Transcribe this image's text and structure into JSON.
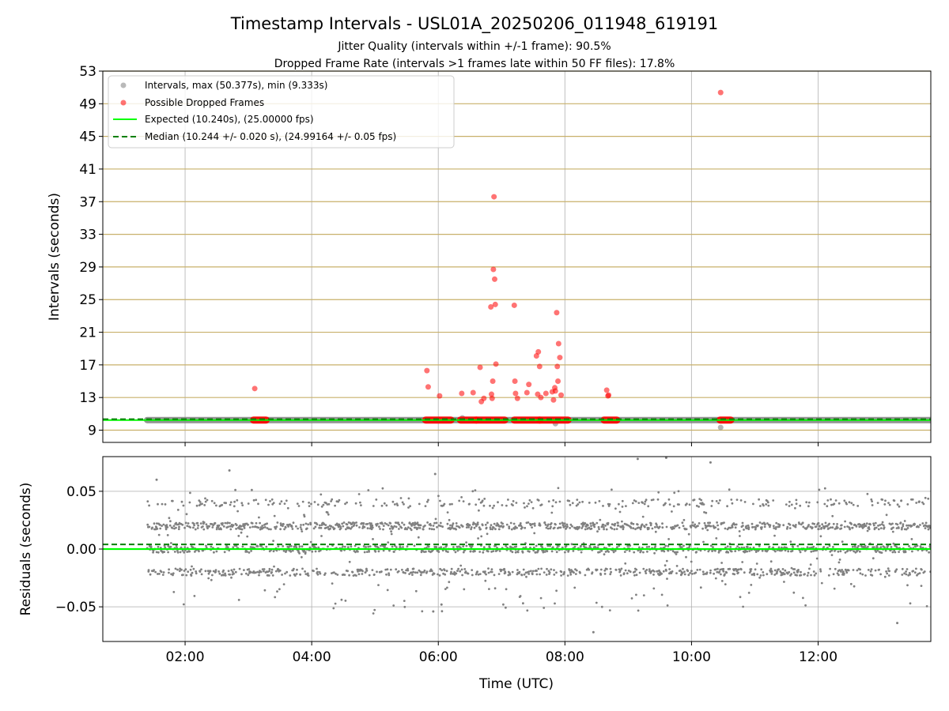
{
  "chart_data": [
    {
      "type": "scatter",
      "title": "Timestamp Intervals - USL01A_20250206_011948_619191",
      "subtitle_lines": [
        "Jitter Quality (intervals within +/-1 frame): 90.5%",
        "Dropped Frame Rate (intervals >1 frames late within 50 FF files): 17.8%"
      ],
      "xlabel": "",
      "ylabel": "Intervals (seconds)",
      "x_unit": "hours UTC",
      "xlim": [
        0.7,
        13.78
      ],
      "ylim": [
        7.5,
        53
      ],
      "yticks": [
        9,
        13,
        17,
        21,
        25,
        29,
        33,
        37,
        41,
        45,
        49,
        53
      ],
      "ytick_labels": [
        "9",
        "13",
        "17",
        "21",
        "25",
        "29",
        "33",
        "37",
        "41",
        "45",
        "49",
        "53"
      ],
      "horizontal_grid_color": "#c8b06a",
      "vertical_grid": true,
      "legend_position": "top-left",
      "legend": [
        "Intervals, max (50.377s), min (9.333s)",
        "Possible Dropped Frames",
        "Expected (10.240s), (25.00000 fps)",
        "Median (10.244 +/- 0.020 s), (24.99164 +/- 0.05 fps)"
      ],
      "intervals": {
        "color": "#808080",
        "x_range": [
          1.4,
          13.78
        ],
        "baseline_value": 10.24,
        "outliers": [
          {
            "x": 6.38,
            "y": 10.5
          },
          {
            "x": 7.85,
            "y": 9.8
          },
          {
            "x": 10.46,
            "y": 9.333
          }
        ]
      },
      "dropped_frames": {
        "color": "#ff0000",
        "points": [
          {
            "x": 3.1,
            "y": 14.1
          },
          {
            "x": 5.82,
            "y": 16.3
          },
          {
            "x": 5.84,
            "y": 14.3
          },
          {
            "x": 6.02,
            "y": 13.2
          },
          {
            "x": 6.37,
            "y": 13.5
          },
          {
            "x": 6.55,
            "y": 13.6
          },
          {
            "x": 6.66,
            "y": 16.7
          },
          {
            "x": 6.68,
            "y": 12.5
          },
          {
            "x": 6.72,
            "y": 12.9
          },
          {
            "x": 6.83,
            "y": 24.1
          },
          {
            "x": 6.84,
            "y": 13.4
          },
          {
            "x": 6.85,
            "y": 12.9
          },
          {
            "x": 6.86,
            "y": 15.0
          },
          {
            "x": 6.87,
            "y": 28.7
          },
          {
            "x": 6.88,
            "y": 37.6
          },
          {
            "x": 6.89,
            "y": 27.5
          },
          {
            "x": 6.9,
            "y": 24.4
          },
          {
            "x": 6.91,
            "y": 17.1
          },
          {
            "x": 7.2,
            "y": 24.3
          },
          {
            "x": 7.21,
            "y": 15.0
          },
          {
            "x": 7.22,
            "y": 13.5
          },
          {
            "x": 7.25,
            "y": 12.9
          },
          {
            "x": 7.4,
            "y": 13.6
          },
          {
            "x": 7.43,
            "y": 14.6
          },
          {
            "x": 7.55,
            "y": 18.1
          },
          {
            "x": 7.57,
            "y": 13.4
          },
          {
            "x": 7.58,
            "y": 18.6
          },
          {
            "x": 7.6,
            "y": 16.8
          },
          {
            "x": 7.62,
            "y": 13.0
          },
          {
            "x": 7.7,
            "y": 13.5
          },
          {
            "x": 7.8,
            "y": 13.7
          },
          {
            "x": 7.82,
            "y": 12.7
          },
          {
            "x": 7.84,
            "y": 14.2
          },
          {
            "x": 7.85,
            "y": 13.8
          },
          {
            "x": 7.87,
            "y": 23.4
          },
          {
            "x": 7.88,
            "y": 16.8
          },
          {
            "x": 7.89,
            "y": 15.0
          },
          {
            "x": 7.9,
            "y": 19.6
          },
          {
            "x": 7.92,
            "y": 17.9
          },
          {
            "x": 7.94,
            "y": 13.3
          },
          {
            "x": 8.66,
            "y": 13.9
          },
          {
            "x": 8.68,
            "y": 13.2
          },
          {
            "x": 8.69,
            "y": 13.3
          },
          {
            "x": 10.46,
            "y": 50.377
          }
        ],
        "baseline_segments": [
          [
            3.08,
            3.28
          ],
          [
            5.8,
            6.2
          ],
          [
            6.35,
            6.6
          ],
          [
            6.6,
            7.05
          ],
          [
            7.2,
            7.6
          ],
          [
            7.6,
            8.05
          ],
          [
            8.62,
            8.82
          ],
          [
            10.45,
            10.62
          ]
        ]
      },
      "expected_line": {
        "value": 10.24,
        "color": "#00ff00",
        "style": "solid"
      },
      "median_line": {
        "value": 10.244,
        "color": "#008000",
        "style": "dashed"
      }
    },
    {
      "type": "scatter",
      "xlabel": "Time (UTC)",
      "ylabel": "Residuals (seconds)",
      "x_unit": "hours UTC",
      "xlim": [
        0.7,
        13.78
      ],
      "ylim": [
        -0.08,
        0.08
      ],
      "yticks": [
        -0.05,
        0.0,
        0.05
      ],
      "ytick_labels": [
        "−0.05",
        "0.00",
        "0.05"
      ],
      "xticks": [
        2,
        4,
        6,
        8,
        10,
        12
      ],
      "xtick_labels": [
        "02:00",
        "04:00",
        "06:00",
        "08:00",
        "10:00",
        "12:00"
      ],
      "grid": true,
      "points_color": "#808080",
      "x_range": [
        1.4,
        13.78
      ],
      "residual_levels": [
        -0.02,
        0.0,
        0.02,
        0.04
      ],
      "expected_line": {
        "value": 0.0,
        "color": "#00ff00",
        "style": "solid"
      },
      "median_line": {
        "value": 0.004,
        "color": "#008000",
        "style": "dashed"
      },
      "extreme_points": [
        {
          "x": 8.45,
          "y": -0.072
        },
        {
          "x": 13.25,
          "y": -0.064
        },
        {
          "x": 5.92,
          "y": -0.054
        },
        {
          "x": 6.05,
          "y": -0.048
        },
        {
          "x": 2.7,
          "y": 0.068
        },
        {
          "x": 5.95,
          "y": 0.065
        },
        {
          "x": 9.15,
          "y": 0.078
        },
        {
          "x": 9.6,
          "y": 0.079
        },
        {
          "x": 10.3,
          "y": 0.075
        },
        {
          "x": 1.55,
          "y": 0.06
        }
      ]
    }
  ]
}
